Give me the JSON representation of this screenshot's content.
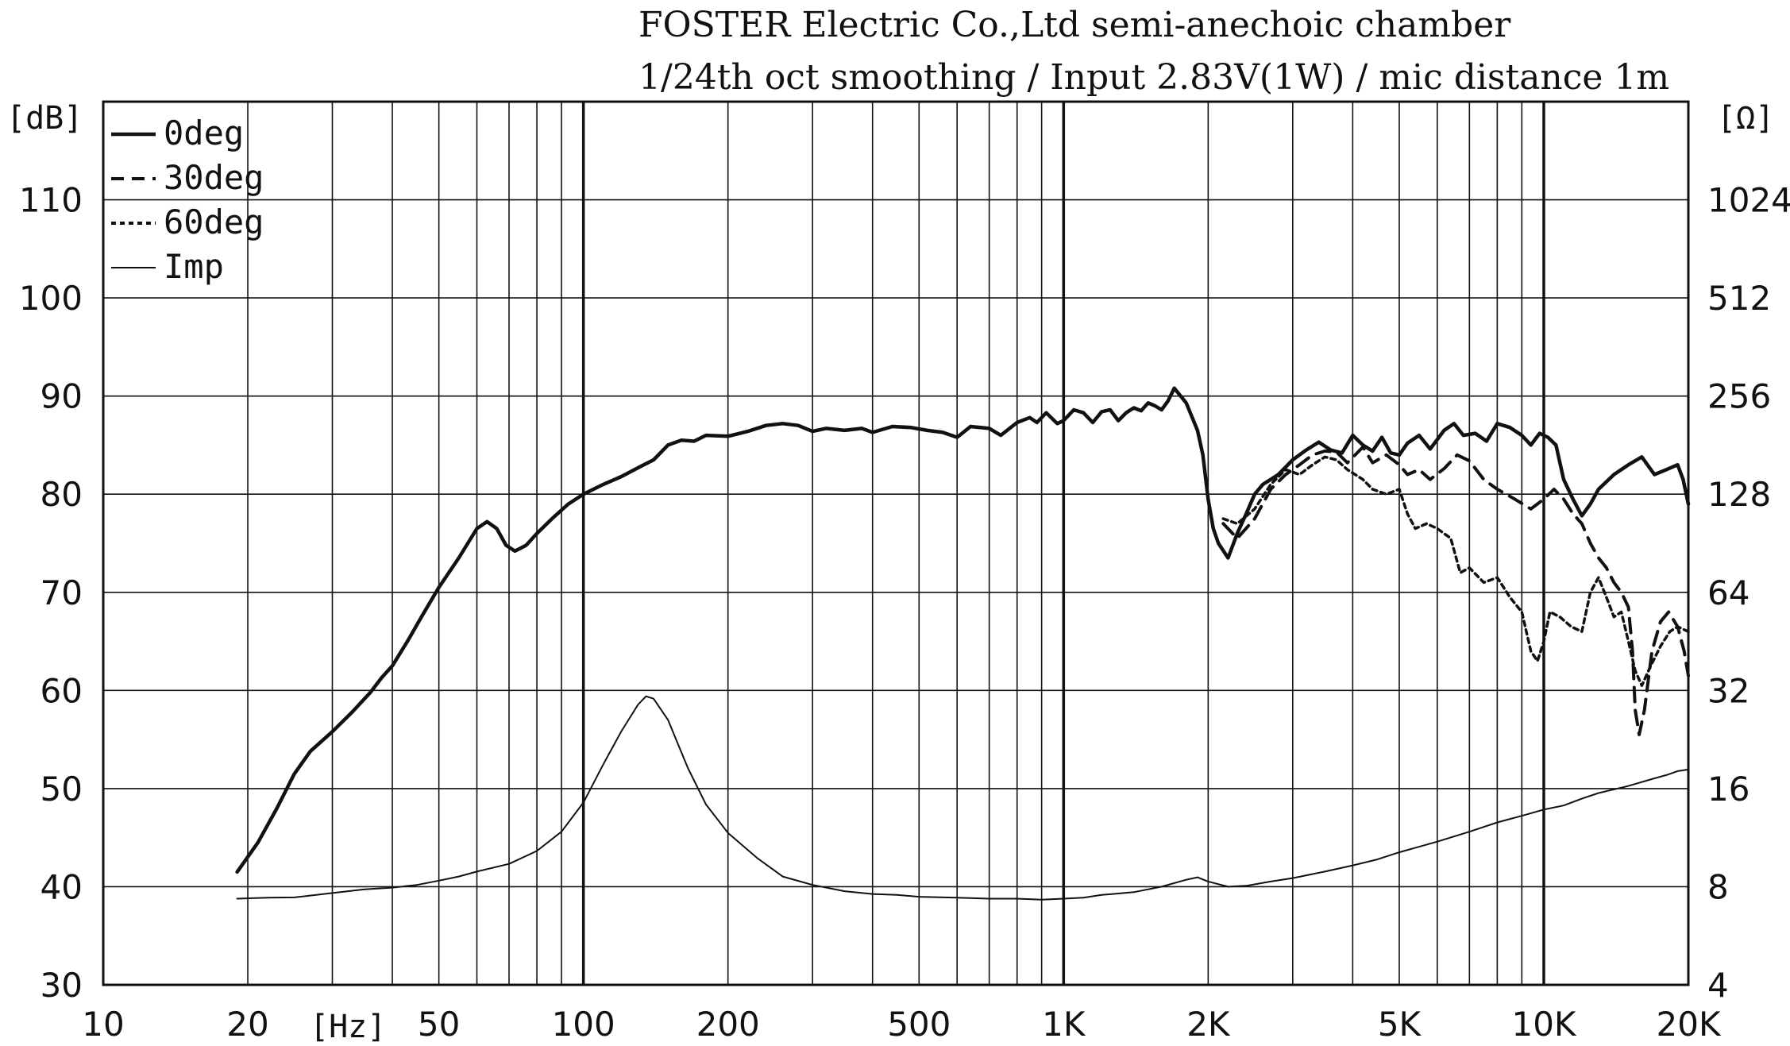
{
  "chart_data": {
    "type": "line",
    "title": "FOSTER Electric Co.,Ltd  semi-anechoic chamber",
    "subtitle": "1/24th oct smoothing / Input 2.83V(1W) / mic distance 1m",
    "x_scale": "log",
    "xlim": [
      10,
      20000
    ],
    "xlabel": "[Hz]",
    "x_ticks": [
      {
        "value": 10,
        "label": "10"
      },
      {
        "value": 20,
        "label": "20"
      },
      {
        "value": 50,
        "label": "50"
      },
      {
        "value": 100,
        "label": "100"
      },
      {
        "value": 200,
        "label": "200"
      },
      {
        "value": 500,
        "label": "500"
      },
      {
        "value": 1000,
        "label": "1K"
      },
      {
        "value": 2000,
        "label": "2K"
      },
      {
        "value": 5000,
        "label": "5K"
      },
      {
        "value": 10000,
        "label": "10K"
      },
      {
        "value": 20000,
        "label": "20K"
      }
    ],
    "ylabel": "[dB]",
    "ylim": [
      30,
      120
    ],
    "y_ticks": [
      30,
      40,
      50,
      60,
      70,
      80,
      90,
      100,
      110
    ],
    "y2label": "[Ω]",
    "y2_scale": "log2",
    "y2lim": [
      4,
      2048
    ],
    "y2_ticks": [
      4,
      8,
      16,
      32,
      64,
      128,
      256,
      512,
      1024
    ],
    "grid": true,
    "legend_position": "top-left",
    "series": [
      {
        "name": "0deg",
        "axis": "left",
        "style": "solid-thick",
        "points": [
          [
            19,
            41.5
          ],
          [
            21,
            44.5
          ],
          [
            23,
            48
          ],
          [
            25,
            51.5
          ],
          [
            27,
            53.8
          ],
          [
            30,
            55.8
          ],
          [
            33,
            57.8
          ],
          [
            36,
            59.8
          ],
          [
            38,
            61.3
          ],
          [
            40,
            62.5
          ],
          [
            43,
            65
          ],
          [
            46,
            67.5
          ],
          [
            50,
            70.5
          ],
          [
            55,
            73.5
          ],
          [
            60,
            76.5
          ],
          [
            63,
            77.2
          ],
          [
            66,
            76.5
          ],
          [
            69,
            74.8
          ],
          [
            72,
            74.2
          ],
          [
            76,
            74.8
          ],
          [
            80,
            76
          ],
          [
            86,
            77.5
          ],
          [
            93,
            79
          ],
          [
            100,
            80
          ],
          [
            110,
            81
          ],
          [
            120,
            81.8
          ],
          [
            130,
            82.7
          ],
          [
            140,
            83.5
          ],
          [
            150,
            85
          ],
          [
            160,
            85.5
          ],
          [
            170,
            85.4
          ],
          [
            180,
            86
          ],
          [
            200,
            85.9
          ],
          [
            220,
            86.4
          ],
          [
            240,
            87
          ],
          [
            260,
            87.2
          ],
          [
            280,
            87
          ],
          [
            300,
            86.4
          ],
          [
            320,
            86.7
          ],
          [
            350,
            86.5
          ],
          [
            380,
            86.7
          ],
          [
            400,
            86.3
          ],
          [
            440,
            86.9
          ],
          [
            480,
            86.8
          ],
          [
            520,
            86.5
          ],
          [
            560,
            86.3
          ],
          [
            600,
            85.8
          ],
          [
            640,
            86.9
          ],
          [
            700,
            86.7
          ],
          [
            740,
            86
          ],
          [
            800,
            87.3
          ],
          [
            850,
            87.8
          ],
          [
            880,
            87.3
          ],
          [
            920,
            88.3
          ],
          [
            970,
            87.2
          ],
          [
            1000,
            87.5
          ],
          [
            1050,
            88.6
          ],
          [
            1100,
            88.3
          ],
          [
            1150,
            87.3
          ],
          [
            1200,
            88.4
          ],
          [
            1250,
            88.6
          ],
          [
            1300,
            87.5
          ],
          [
            1350,
            88.3
          ],
          [
            1400,
            88.8
          ],
          [
            1450,
            88.5
          ],
          [
            1500,
            89.3
          ],
          [
            1550,
            89
          ],
          [
            1600,
            88.6
          ],
          [
            1650,
            89.5
          ],
          [
            1700,
            90.8
          ],
          [
            1800,
            89.3
          ],
          [
            1900,
            86.5
          ],
          [
            1950,
            84
          ],
          [
            2000,
            79.5
          ],
          [
            2050,
            76.5
          ],
          [
            2100,
            75
          ],
          [
            2200,
            73.5
          ],
          [
            2300,
            76
          ],
          [
            2400,
            78
          ],
          [
            2500,
            80
          ],
          [
            2600,
            81
          ],
          [
            2700,
            81.5
          ],
          [
            2800,
            82
          ],
          [
            3000,
            83.5
          ],
          [
            3200,
            84.5
          ],
          [
            3400,
            85.3
          ],
          [
            3600,
            84.5
          ],
          [
            3800,
            84.2
          ],
          [
            4000,
            86
          ],
          [
            4200,
            85
          ],
          [
            4400,
            84.4
          ],
          [
            4600,
            85.8
          ],
          [
            4800,
            84.2
          ],
          [
            5000,
            84
          ],
          [
            5200,
            85.2
          ],
          [
            5500,
            86
          ],
          [
            5800,
            84.6
          ],
          [
            6200,
            86.5
          ],
          [
            6500,
            87.2
          ],
          [
            6800,
            86
          ],
          [
            7200,
            86.2
          ],
          [
            7600,
            85.4
          ],
          [
            8000,
            87.2
          ],
          [
            8500,
            86.8
          ],
          [
            9000,
            86
          ],
          [
            9400,
            85
          ],
          [
            9800,
            86.2
          ],
          [
            10200,
            85.8
          ],
          [
            10600,
            85
          ],
          [
            11000,
            81.5
          ],
          [
            11500,
            79.5
          ],
          [
            12000,
            77.8
          ],
          [
            12500,
            79
          ],
          [
            13000,
            80.5
          ],
          [
            14000,
            82
          ],
          [
            15000,
            83
          ],
          [
            16000,
            83.8
          ],
          [
            17000,
            82
          ],
          [
            18000,
            82.5
          ],
          [
            19000,
            83
          ],
          [
            19500,
            81.5
          ],
          [
            20000,
            79
          ]
        ]
      },
      {
        "name": "30deg",
        "axis": "left",
        "style": "dashed",
        "points": [
          [
            2150,
            77
          ],
          [
            2300,
            75.5
          ],
          [
            2500,
            77.5
          ],
          [
            2700,
            80.5
          ],
          [
            2900,
            82
          ],
          [
            3100,
            83
          ],
          [
            3300,
            84
          ],
          [
            3500,
            84.4
          ],
          [
            3700,
            84.3
          ],
          [
            3900,
            83.2
          ],
          [
            4200,
            84.8
          ],
          [
            4400,
            83.2
          ],
          [
            4700,
            84
          ],
          [
            5000,
            83
          ],
          [
            5200,
            82
          ],
          [
            5500,
            82.5
          ],
          [
            5800,
            81.5
          ],
          [
            6200,
            82.6
          ],
          [
            6600,
            84
          ],
          [
            7000,
            83.4
          ],
          [
            7500,
            81.5
          ],
          [
            8000,
            80.5
          ],
          [
            8700,
            79.5
          ],
          [
            9400,
            78.5
          ],
          [
            10000,
            79.5
          ],
          [
            10500,
            80.5
          ],
          [
            11000,
            79.5
          ],
          [
            11500,
            78
          ],
          [
            12000,
            77
          ],
          [
            12500,
            75
          ],
          [
            13000,
            73.5
          ],
          [
            13500,
            72.5
          ],
          [
            14000,
            71
          ],
          [
            14500,
            70
          ],
          [
            15000,
            68.5
          ],
          [
            15300,
            64
          ],
          [
            15500,
            58
          ],
          [
            15800,
            55.5
          ],
          [
            16200,
            58
          ],
          [
            16800,
            64
          ],
          [
            17500,
            67
          ],
          [
            18200,
            68
          ],
          [
            19000,
            66.5
          ],
          [
            19600,
            64
          ],
          [
            20000,
            61.5
          ]
        ]
      },
      {
        "name": "60deg",
        "axis": "left",
        "style": "dotted",
        "points": [
          [
            2150,
            77.5
          ],
          [
            2300,
            77
          ],
          [
            2500,
            78.5
          ],
          [
            2700,
            81
          ],
          [
            2900,
            82.5
          ],
          [
            3100,
            82
          ],
          [
            3300,
            83
          ],
          [
            3500,
            83.8
          ],
          [
            3700,
            83.5
          ],
          [
            3900,
            82.5
          ],
          [
            4200,
            81.5
          ],
          [
            4400,
            80.5
          ],
          [
            4700,
            80
          ],
          [
            5000,
            80.5
          ],
          [
            5200,
            78
          ],
          [
            5400,
            76.5
          ],
          [
            5700,
            77
          ],
          [
            6000,
            76.5
          ],
          [
            6400,
            75.5
          ],
          [
            6700,
            72
          ],
          [
            7000,
            72.5
          ],
          [
            7500,
            71
          ],
          [
            8000,
            71.5
          ],
          [
            8500,
            69.5
          ],
          [
            9000,
            68
          ],
          [
            9400,
            64
          ],
          [
            9700,
            63
          ],
          [
            10000,
            65
          ],
          [
            10300,
            68
          ],
          [
            10800,
            67.5
          ],
          [
            11400,
            66.5
          ],
          [
            12000,
            66
          ],
          [
            12500,
            70
          ],
          [
            13000,
            71.5
          ],
          [
            13500,
            69.5
          ],
          [
            14000,
            67.5
          ],
          [
            14500,
            68
          ],
          [
            15000,
            65
          ],
          [
            15500,
            62
          ],
          [
            16000,
            60.5
          ],
          [
            16700,
            62.5
          ],
          [
            17500,
            64.5
          ],
          [
            18300,
            66
          ],
          [
            19000,
            66.5
          ],
          [
            20000,
            66
          ]
        ]
      },
      {
        "name": "Imp",
        "axis": "right",
        "style": "solid-thin",
        "points": [
          [
            19,
            7.35
          ],
          [
            22,
            7.4
          ],
          [
            25,
            7.42
          ],
          [
            30,
            7.65
          ],
          [
            35,
            7.85
          ],
          [
            40,
            7.95
          ],
          [
            45,
            8.1
          ],
          [
            50,
            8.35
          ],
          [
            55,
            8.6
          ],
          [
            60,
            8.9
          ],
          [
            70,
            9.4
          ],
          [
            80,
            10.3
          ],
          [
            90,
            11.8
          ],
          [
            100,
            14.5
          ],
          [
            110,
            19
          ],
          [
            120,
            24
          ],
          [
            130,
            29
          ],
          [
            135,
            30.7
          ],
          [
            140,
            30.2
          ],
          [
            150,
            26
          ],
          [
            165,
            18.5
          ],
          [
            180,
            14.3
          ],
          [
            200,
            11.7
          ],
          [
            230,
            9.8
          ],
          [
            260,
            8.6
          ],
          [
            300,
            8.1
          ],
          [
            350,
            7.75
          ],
          [
            400,
            7.6
          ],
          [
            450,
            7.55
          ],
          [
            500,
            7.45
          ],
          [
            600,
            7.4
          ],
          [
            700,
            7.35
          ],
          [
            800,
            7.35
          ],
          [
            900,
            7.3
          ],
          [
            1000,
            7.35
          ],
          [
            1100,
            7.4
          ],
          [
            1200,
            7.55
          ],
          [
            1400,
            7.7
          ],
          [
            1600,
            8
          ],
          [
            1800,
            8.4
          ],
          [
            1900,
            8.55
          ],
          [
            2000,
            8.3
          ],
          [
            2200,
            8.0
          ],
          [
            2400,
            8.05
          ],
          [
            2700,
            8.3
          ],
          [
            3000,
            8.5
          ],
          [
            3500,
            8.9
          ],
          [
            4000,
            9.3
          ],
          [
            4500,
            9.7
          ],
          [
            5000,
            10.2
          ],
          [
            6000,
            11
          ],
          [
            7000,
            11.8
          ],
          [
            8000,
            12.6
          ],
          [
            9000,
            13.2
          ],
          [
            10000,
            13.8
          ],
          [
            11000,
            14.2
          ],
          [
            12000,
            14.9
          ],
          [
            13000,
            15.5
          ],
          [
            15000,
            16.3
          ],
          [
            17000,
            17.2
          ],
          [
            18000,
            17.6
          ],
          [
            19000,
            18.1
          ],
          [
            20000,
            18.3
          ]
        ]
      }
    ]
  }
}
